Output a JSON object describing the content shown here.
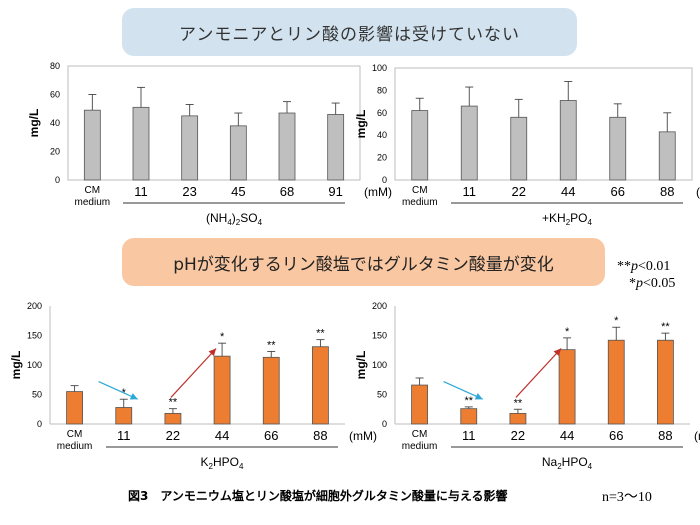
{
  "banners": {
    "top": "アンモニアとリン酸の影響は受けていない",
    "middle": "pHが変化するリン酸塩ではグルタミン酸量が変化"
  },
  "significance_legend": [
    "**p<0.01",
    "*p<0.05"
  ],
  "caption": "図3　アンモニウム塩とリン酸塩が細胞外グルタミン酸量に与える影響",
  "n_label": "n=3〜10",
  "chart_data": [
    {
      "type": "bar",
      "categories": [
        "CM medium",
        "11",
        "23",
        "45",
        "68",
        "91"
      ],
      "values": [
        49,
        51,
        45,
        38,
        47,
        46
      ],
      "errors": [
        11,
        14,
        8,
        9,
        8,
        8
      ],
      "significance": [
        "",
        "",
        "",
        "",
        "",
        ""
      ],
      "unit_label": "(mM)",
      "xlabel": "(NH4)2SO4",
      "xlabel_parts": [
        "(NH",
        "4",
        ")",
        "2",
        "SO",
        "4"
      ],
      "ylabel": "mg/L",
      "ylim": [
        0,
        80
      ],
      "yticks": [
        0,
        20,
        40,
        60,
        80
      ],
      "color": "#bfbfbf"
    },
    {
      "type": "bar",
      "categories": [
        "CM medium",
        "11",
        "22",
        "44",
        "66",
        "88"
      ],
      "values": [
        62,
        66,
        56,
        71,
        56,
        43
      ],
      "errors": [
        11,
        17,
        16,
        17,
        12,
        17
      ],
      "significance": [
        "",
        "",
        "",
        "",
        "",
        ""
      ],
      "unit_label": "(mM)",
      "xlabel": "+KH2PO4",
      "xlabel_parts": [
        "+KH",
        "2",
        "PO",
        "4"
      ],
      "ylabel": "mg/L",
      "ylim": [
        0,
        100
      ],
      "yticks": [
        0,
        20,
        40,
        60,
        80,
        100
      ],
      "color": "#bfbfbf"
    },
    {
      "type": "bar",
      "categories": [
        "CM medium",
        "11",
        "22",
        "44",
        "66",
        "88"
      ],
      "values": [
        55,
        28,
        18,
        115,
        113,
        131
      ],
      "errors": [
        10,
        14,
        8,
        22,
        10,
        12
      ],
      "significance": [
        "",
        "*",
        "**",
        "*",
        "**",
        "**"
      ],
      "unit_label": "(mM)",
      "xlabel": "K2HPO4",
      "xlabel_parts": [
        "K",
        "2",
        "HPO",
        "4"
      ],
      "ylabel": "mg/L",
      "ylim": [
        0,
        200
      ],
      "yticks": [
        0,
        50,
        100,
        150,
        200
      ],
      "color": "#ed7d31"
    },
    {
      "type": "bar",
      "categories": [
        "CM medium",
        "11",
        "22",
        "44",
        "66",
        "88"
      ],
      "values": [
        66,
        26,
        18,
        126,
        142,
        142
      ],
      "errors": [
        12,
        3,
        7,
        20,
        22,
        12
      ],
      "significance": [
        "",
        "**",
        "**",
        "*",
        "*",
        "**"
      ],
      "unit_label": "(mM)",
      "xlabel": "Na2HPO4",
      "xlabel_parts": [
        "Na",
        "2",
        "HPO",
        "4"
      ],
      "ylabel": "mg/L",
      "ylim": [
        0,
        200
      ],
      "yticks": [
        0,
        50,
        100,
        150,
        200
      ],
      "color": "#ed7d31"
    }
  ],
  "colors": {
    "decrease_arrow": "#2ea8d8",
    "increase_arrow": "#c0302a"
  }
}
